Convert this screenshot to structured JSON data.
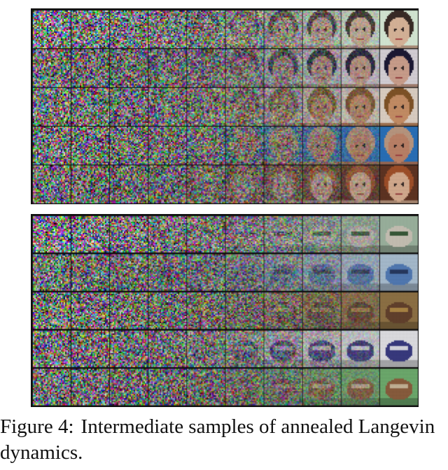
{
  "figure": {
    "panels": [
      {
        "id": "faces",
        "grid": {
          "rows": 5,
          "cols": 10
        },
        "row_subjects": [
          {
            "face": "#dbb79c",
            "hair": "#3a2d27",
            "bg": "#d9ecd8"
          },
          {
            "face": "#e4b39e",
            "hair": "#1f1b3a",
            "bg": "#f1ecf2"
          },
          {
            "face": "#d69a6e",
            "hair": "#8b5a2b",
            "bg": "#efe2d5"
          },
          {
            "face": "#cc8c70",
            "hair": "#c9a48a",
            "bg": "#2c79c8"
          },
          {
            "face": "#efc0a0",
            "hair": "#b4592e",
            "bg": "#6a3a26"
          }
        ]
      },
      {
        "id": "objects",
        "grid": {
          "rows": 5,
          "cols": 10
        },
        "row_subjects": [
          {
            "main": "#c9c2b6",
            "accent": "#3a5a3a",
            "bg": "#9db4a0"
          },
          {
            "main": "#5b88c9",
            "accent": "#2b3f6b",
            "bg": "#bcd3e8"
          },
          {
            "main": "#6a4630",
            "accent": "#b8904a",
            "bg": "#9a7a4a"
          },
          {
            "main": "#3d3f8a",
            "accent": "#e8e8f2",
            "bg": "#f2f2f6"
          },
          {
            "main": "#9a6844",
            "accent": "#dcc8a8",
            "bg": "#7bbf7a"
          }
        ]
      }
    ],
    "caption": {
      "label": "Figure 4:",
      "text": "Intermediate samples of annealed Langevin dynamics."
    }
  }
}
